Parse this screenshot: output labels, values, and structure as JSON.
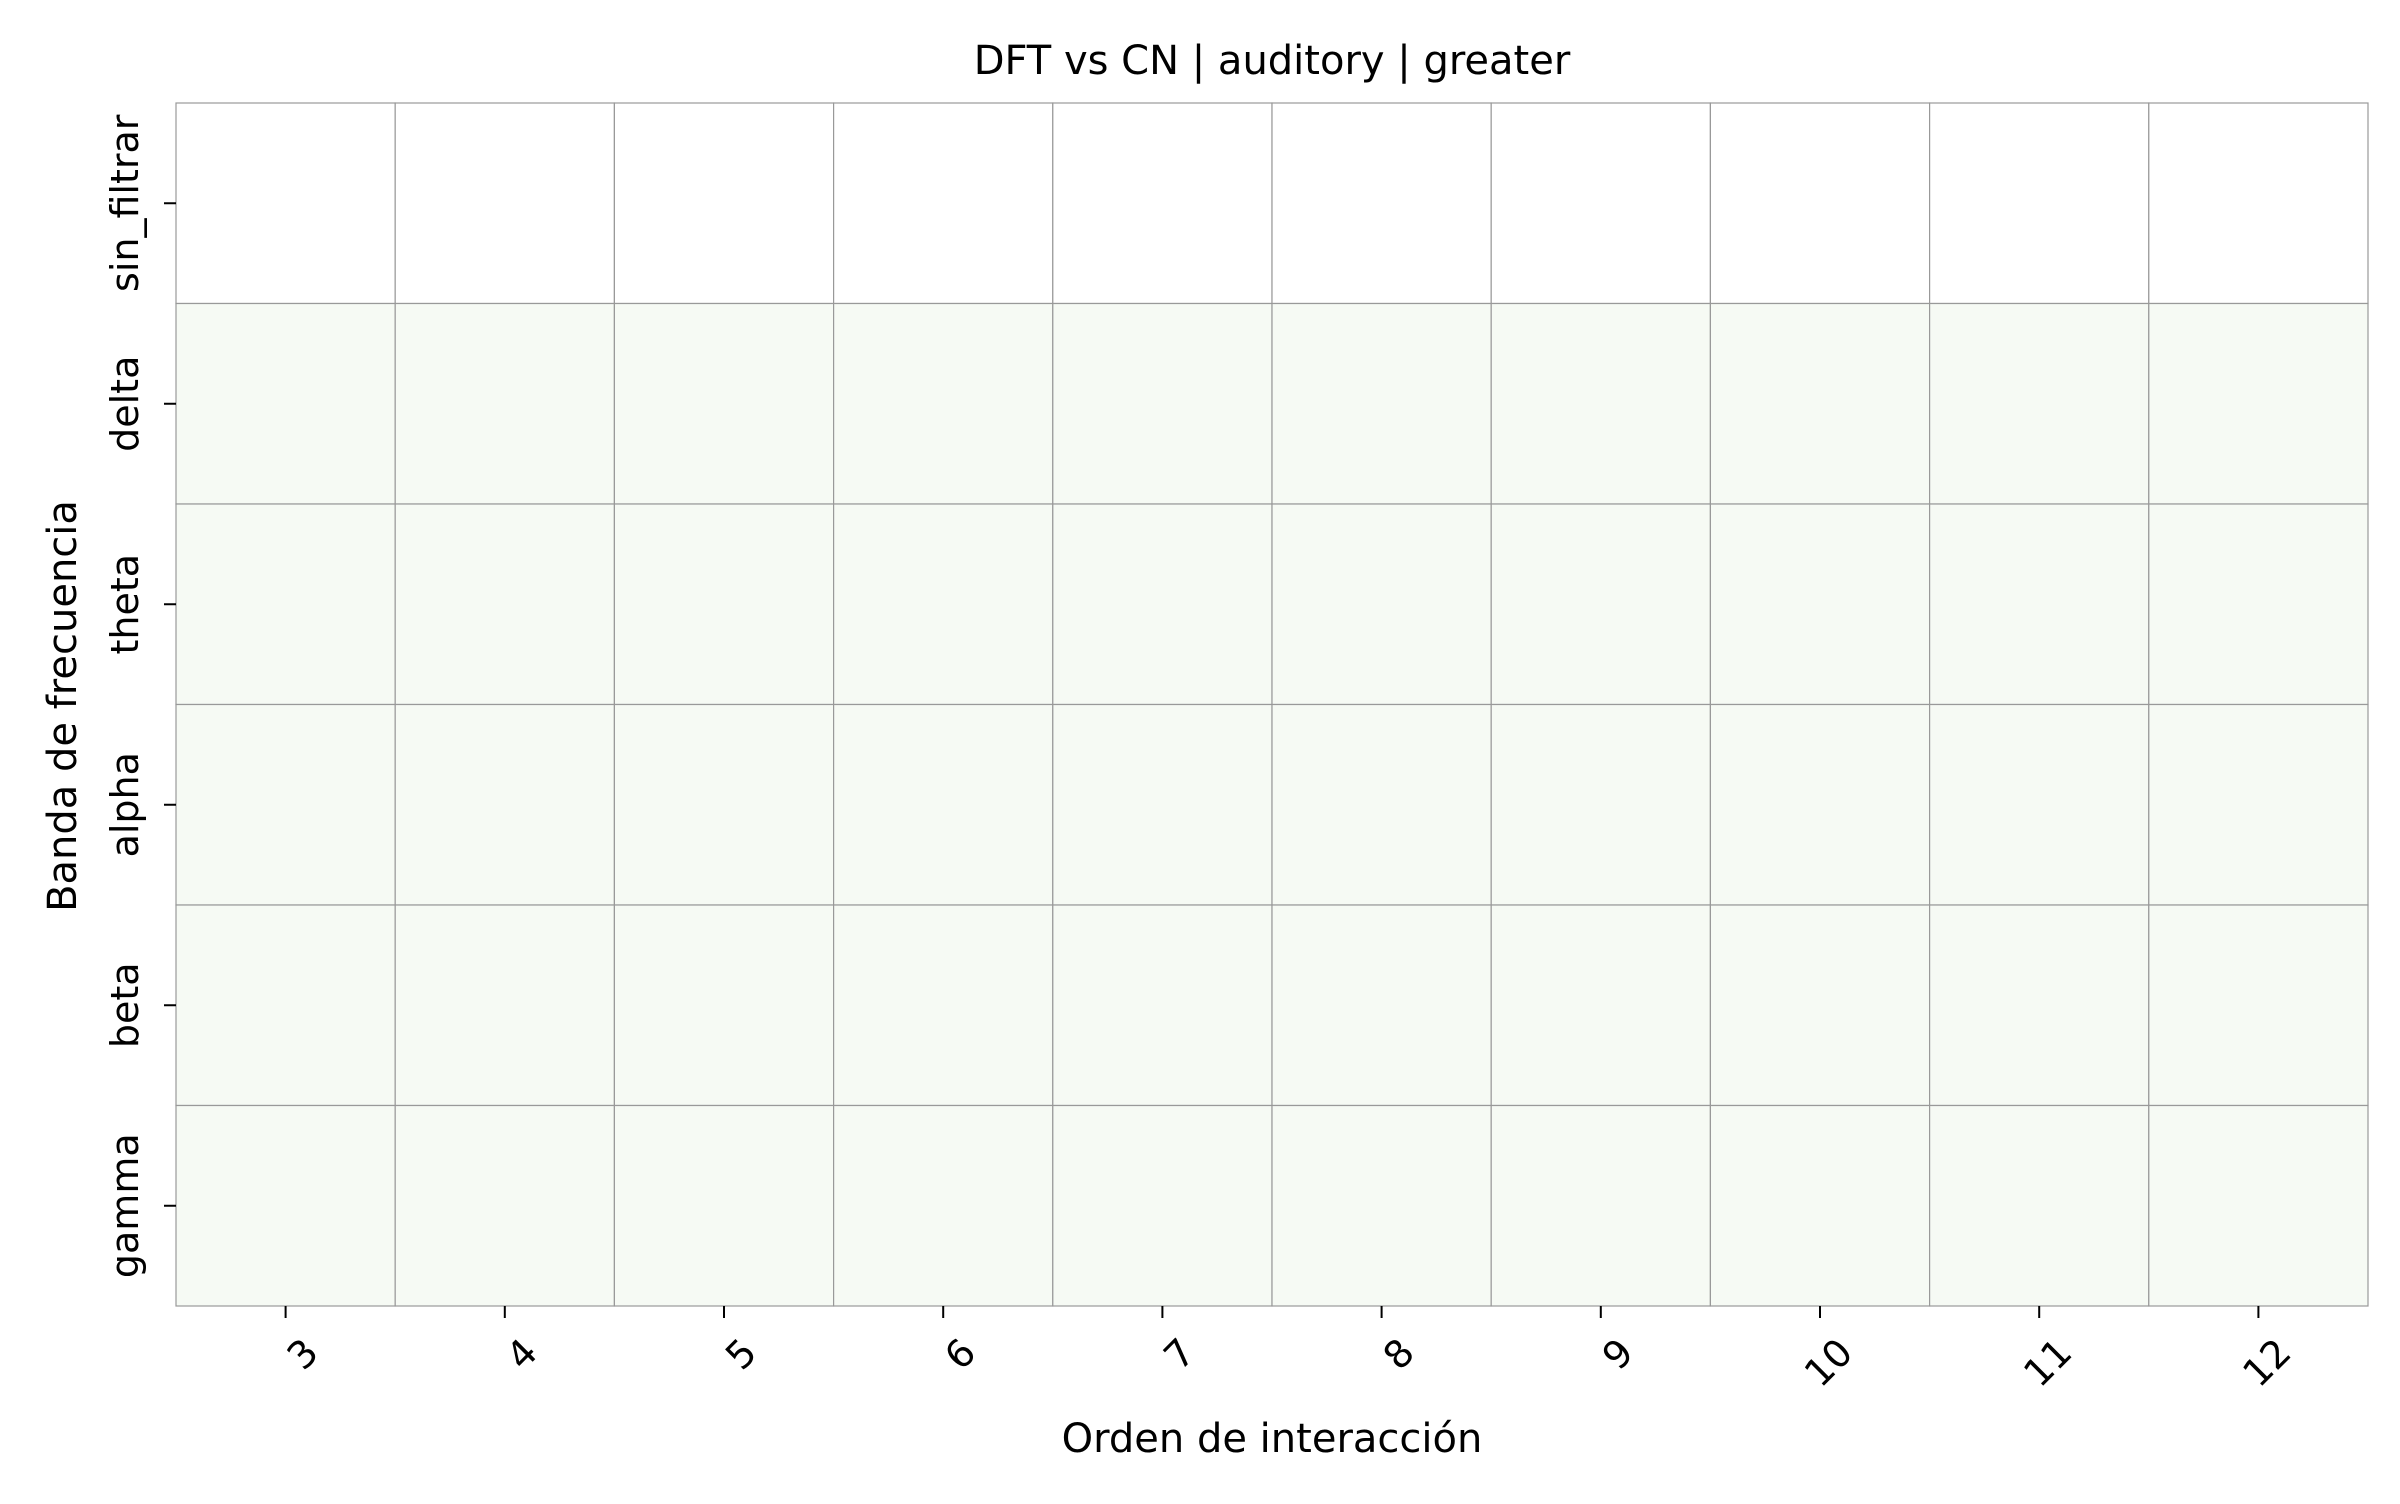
{
  "chart_data": {
    "type": "heatmap",
    "title": "DFT vs CN | auditory | greater",
    "xlabel": "Orden de interacción",
    "ylabel": "Banda de frecuencia",
    "x_categories": [
      "3",
      "4",
      "5",
      "6",
      "7",
      "8",
      "9",
      "10",
      "11",
      "12"
    ],
    "y_categories": [
      "sin_filtrar",
      "delta",
      "theta",
      "alpha",
      "beta",
      "gamma"
    ],
    "row_colors": [
      "#ffffff",
      "#f6faf4",
      "#f6faf4",
      "#f6faf4",
      "#f6faf4",
      "#f6faf4"
    ],
    "grid_color": "#999999",
    "grid": true,
    "colorbar": false
  }
}
